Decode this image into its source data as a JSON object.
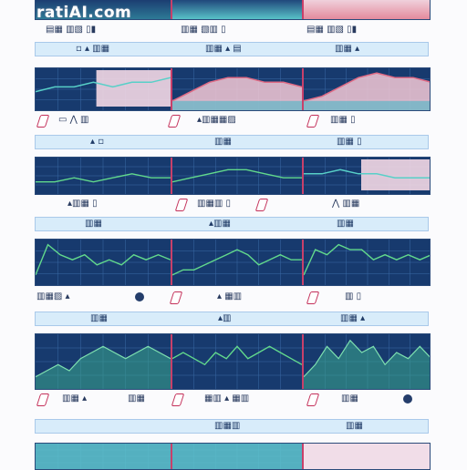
{
  "watermark": "ratiAI.com",
  "chart_data": [
    {
      "type": "line",
      "values": [
        4,
        5,
        5,
        6,
        5,
        6,
        6,
        7
      ],
      "style": "band-light"
    },
    {
      "type": "area",
      "values": [
        2,
        4,
        6,
        7,
        7,
        6,
        6,
        5
      ],
      "style": "area-coral"
    },
    {
      "type": "area",
      "values": [
        2,
        3,
        5,
        7,
        8,
        7,
        7,
        6
      ],
      "style": "area-coral"
    },
    {
      "type": "line",
      "values": [
        3,
        3,
        4,
        3,
        4,
        5,
        4,
        4
      ],
      "style": "line-green"
    },
    {
      "type": "line",
      "values": [
        3,
        4,
        5,
        6,
        6,
        5,
        4,
        4
      ],
      "style": "line-green"
    },
    {
      "type": "line",
      "values": [
        5,
        5,
        6,
        5,
        5,
        4,
        4,
        4
      ],
      "style": "band-light"
    },
    {
      "type": "line",
      "values": [
        2,
        8,
        6,
        5,
        6,
        4,
        5,
        4,
        6,
        5,
        6,
        5
      ],
      "style": "line-green"
    },
    {
      "type": "line",
      "values": [
        2,
        3,
        3,
        4,
        5,
        6,
        7,
        6,
        4,
        5,
        6,
        5,
        5
      ],
      "style": "line-green"
    },
    {
      "type": "line",
      "values": [
        2,
        7,
        6,
        8,
        7,
        7,
        5,
        6,
        5,
        6,
        5,
        6
      ],
      "style": "line-green"
    },
    {
      "type": "area",
      "values": [
        2,
        3,
        4,
        3,
        5,
        6,
        7,
        6,
        5,
        6,
        7,
        6,
        5
      ],
      "style": "area-green"
    },
    {
      "type": "line",
      "values": [
        5,
        6,
        5,
        4,
        6,
        5,
        7,
        5,
        6,
        7,
        6,
        5,
        4
      ],
      "style": "line-green"
    },
    {
      "type": "area",
      "values": [
        2,
        4,
        7,
        5,
        8,
        6,
        7,
        4,
        6,
        5,
        7,
        5
      ],
      "style": "area-green"
    },
    {
      "type": "area",
      "values": [
        3,
        3,
        3,
        3,
        3,
        3,
        3,
        3
      ],
      "style": "band-teal"
    },
    {
      "type": "area",
      "values": [
        3,
        3,
        3,
        3,
        3,
        3,
        3,
        3
      ],
      "style": "band-teal"
    }
  ]
}
